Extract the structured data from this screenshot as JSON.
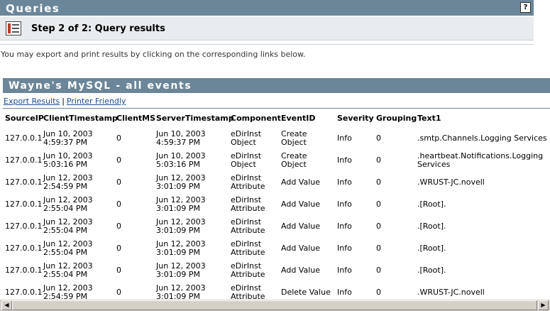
{
  "header": {
    "title": "Queries",
    "help_label": "?"
  },
  "step": {
    "title": "Step 2 of 2: Query results"
  },
  "info_text": "You may export and print results by clicking on the corresponding links below.",
  "report": {
    "title": "Wayne's MySQL - all events"
  },
  "links": {
    "export": "Export Results",
    "separator": "|",
    "printer": "Printer Friendly"
  },
  "table": {
    "columns": [
      "SourceIP",
      "ClientTimestamp",
      "ClientMS",
      "ServerTimestamp",
      "Component",
      "EventID",
      "Severity",
      "Grouping",
      "Text1"
    ],
    "rows": [
      [
        "127.0.0.1",
        "Jun 10, 2003\n4:59:37 PM",
        "0",
        "Jun 10, 2003\n4:59:37 PM",
        "eDirInst\nObject",
        "Create\nObject",
        "Info",
        "0",
        ".smtp.Channels.Logging Services"
      ],
      [
        "127.0.0.1",
        "Jun 10, 2003\n5:03:16 PM",
        "0",
        "Jun 10, 2003\n5:03:16 PM",
        "eDirInst\nObject",
        "Create\nObject",
        "Info",
        "0",
        ".heartbeat.Notifications.Logging\nServices"
      ],
      [
        "127.0.0.1",
        "Jun 12, 2003\n2:54:59 PM",
        "0",
        "Jun 12, 2003\n3:01:09 PM",
        "eDirInst\nAttribute",
        "Add Value",
        "Info",
        "0",
        ".WRUST-JC.novell"
      ],
      [
        "127.0.0.1",
        "Jun 12, 2003\n2:55:04 PM",
        "0",
        "Jun 12, 2003\n3:01:09 PM",
        "eDirInst\nAttribute",
        "Add Value",
        "Info",
        "0",
        ".[Root]."
      ],
      [
        "127.0.0.1",
        "Jun 12, 2003\n2:55:04 PM",
        "0",
        "Jun 12, 2003\n3:01:09 PM",
        "eDirInst\nAttribute",
        "Add Value",
        "Info",
        "0",
        ".[Root]."
      ],
      [
        "127.0.0.1",
        "Jun 12, 2003\n2:55:04 PM",
        "0",
        "Jun 12, 2003\n3:01:09 PM",
        "eDirInst\nAttribute",
        "Add Value",
        "Info",
        "0",
        ".[Root]."
      ],
      [
        "127.0.0.1",
        "Jun 12, 2003\n2:55:04 PM",
        "0",
        "Jun 12, 2003\n3:01:09 PM",
        "eDirInst\nAttribute",
        "Add Value",
        "Info",
        "0",
        ".[Root]."
      ],
      [
        "127.0.0.1",
        "Jun 12, 2003\n2:54:59 PM",
        "0",
        "Jun 12, 2003\n3:01:09 PM",
        "eDirInst\nAttribute",
        "Delete Value",
        "Info",
        "0",
        ".WRUST-JC.novell"
      ]
    ]
  },
  "icons": {
    "step_icon": "report-icon",
    "scroll_left": "scroll-left-arrow-icon",
    "scroll_right": "scroll-right-arrow-icon"
  },
  "colors": {
    "header_bg": "#6b8699",
    "step_bg": "#e8ecee",
    "link": "#1a4d8f"
  }
}
